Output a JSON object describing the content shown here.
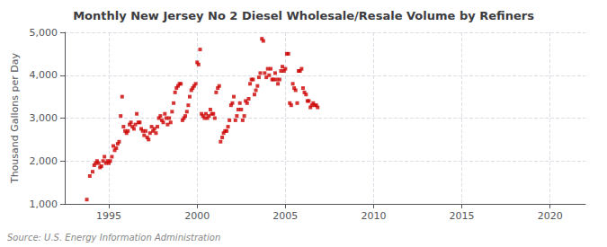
{
  "chart_data": {
    "type": "scatter",
    "title": "Monthly New Jersey No 2 Diesel Wholesale/Resale Volume by Refiners",
    "ylabel": "Thousand Gallons per Day",
    "annotation": "Source: U.S. Energy Information Administration",
    "color": "#cc0000",
    "marker": "square",
    "grid": true,
    "xlim": [
      1992.5,
      2022
    ],
    "ylim": [
      1000,
      5000
    ],
    "xticks": [
      1995,
      2000,
      2005,
      2010,
      2015,
      2020
    ],
    "yticks": [
      {
        "value": 1000,
        "label": "1,000"
      },
      {
        "value": 2000,
        "label": "2,000"
      },
      {
        "value": 3000,
        "label": "3,000"
      },
      {
        "value": 4000,
        "label": "4,000"
      },
      {
        "value": 5000,
        "label": "5,000"
      }
    ],
    "x": [
      1993.75,
      1993.92,
      1994.08,
      1994.17,
      1994.25,
      1994.33,
      1994.42,
      1994.5,
      1994.58,
      1994.67,
      1994.75,
      1994.83,
      1994.92,
      1995.0,
      1995.08,
      1995.17,
      1995.25,
      1995.33,
      1995.42,
      1995.5,
      1995.58,
      1995.67,
      1995.75,
      1995.83,
      1995.92,
      1996.0,
      1996.08,
      1996.17,
      1996.25,
      1996.33,
      1996.42,
      1996.5,
      1996.58,
      1996.67,
      1996.75,
      1996.83,
      1996.92,
      1997.0,
      1997.08,
      1997.17,
      1997.25,
      1997.33,
      1997.42,
      1997.5,
      1997.58,
      1997.67,
      1997.75,
      1997.83,
      1997.92,
      1998.0,
      1998.08,
      1998.17,
      1998.25,
      1998.33,
      1998.42,
      1998.5,
      1998.58,
      1998.67,
      1998.75,
      1998.83,
      1998.92,
      1999.0,
      1999.08,
      1999.17,
      1999.25,
      1999.33,
      1999.42,
      1999.5,
      1999.58,
      1999.67,
      1999.75,
      1999.83,
      1999.92,
      2000.0,
      2000.08,
      2000.17,
      2000.25,
      2000.33,
      2000.42,
      2000.5,
      2000.58,
      2000.67,
      2000.75,
      2000.83,
      2000.92,
      2001.0,
      2001.08,
      2001.17,
      2001.25,
      2001.33,
      2001.42,
      2001.5,
      2001.58,
      2001.67,
      2001.75,
      2001.83,
      2001.92,
      2002.0,
      2002.08,
      2002.17,
      2002.25,
      2002.33,
      2002.42,
      2002.5,
      2002.58,
      2002.67,
      2002.75,
      2002.83,
      2002.92,
      2003.0,
      2003.08,
      2003.17,
      2003.25,
      2003.33,
      2003.42,
      2003.5,
      2003.58,
      2003.67,
      2003.75,
      2003.83,
      2003.92,
      2004.0,
      2004.08,
      2004.17,
      2004.25,
      2004.33,
      2004.42,
      2004.5,
      2004.58,
      2004.67,
      2004.75,
      2004.83,
      2004.92,
      2005.0,
      2005.08,
      2005.17,
      2005.25,
      2005.33,
      2005.42,
      2005.5,
      2005.58,
      2005.67,
      2005.75,
      2005.83,
      2005.92,
      2006.0,
      2006.08,
      2006.17,
      2006.25,
      2006.33,
      2006.42,
      2006.5,
      2006.58,
      2006.67,
      2006.75,
      2006.83
    ],
    "values": [
      1100,
      1650,
      1750,
      1900,
      1950,
      2000,
      1950,
      1850,
      1880,
      2000,
      2100,
      1950,
      2000,
      1950,
      2000,
      2100,
      2350,
      2250,
      2300,
      2400,
      2450,
      3050,
      3500,
      2800,
      2700,
      2650,
      2700,
      2850,
      2900,
      2800,
      2750,
      2850,
      3100,
      2900,
      2900,
      2750,
      2700,
      2600,
      2700,
      2550,
      2500,
      2650,
      2800,
      2700,
      2750,
      2650,
      2800,
      3000,
      3050,
      2950,
      2900,
      3100,
      3000,
      2850,
      3000,
      2900,
      3150,
      3350,
      3600,
      3700,
      3750,
      3800,
      3800,
      2950,
      3000,
      3050,
      3150,
      3300,
      3500,
      3650,
      3700,
      3750,
      3800,
      4300,
      4250,
      4600,
      3100,
      3050,
      3000,
      3100,
      3000,
      3050,
      3200,
      3100,
      3100,
      3000,
      3600,
      3700,
      3750,
      2450,
      2550,
      2650,
      2700,
      2700,
      2800,
      2950,
      3300,
      3350,
      3500,
      2950,
      3050,
      3200,
      3350,
      3200,
      2950,
      3050,
      3400,
      3350,
      3450,
      3800,
      3900,
      3900,
      3550,
      3650,
      3750,
      3950,
      4050,
      4850,
      4800,
      4050,
      3950,
      4150,
      4000,
      4150,
      3900,
      3900,
      4050,
      3900,
      3800,
      3900,
      4100,
      4200,
      4100,
      4150,
      4500,
      4500,
      3350,
      3300,
      3800,
      3700,
      3650,
      3350,
      4100,
      4100,
      4150,
      3700,
      3600,
      3550,
      3400,
      3400,
      3250,
      3300,
      3350,
      3300,
      3300,
      3250
    ]
  }
}
